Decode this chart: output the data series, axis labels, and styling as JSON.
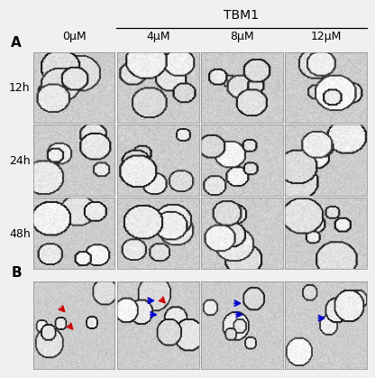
{
  "title_A": "A",
  "title_B": "B",
  "tbm1_label": "TBM1",
  "concentrations": [
    "0μM",
    "4μM",
    "8μM",
    "12μM"
  ],
  "timepoints": [
    "12h",
    "24h",
    "48h"
  ],
  "bg_color": "#ffffff",
  "cell_bg": "#d8d8d8",
  "panel_A_rows": 3,
  "panel_A_cols": 4,
  "panel_B_cols": 4,
  "label_fontsize": 11,
  "conc_fontsize": 9,
  "time_fontsize": 9,
  "tbm1_fontsize": 10,
  "red_arrow_color": "#cc0000",
  "blue_arrow_color": "#0000cc",
  "border_color": "#888888",
  "figure_bg": "#f0f0f0"
}
